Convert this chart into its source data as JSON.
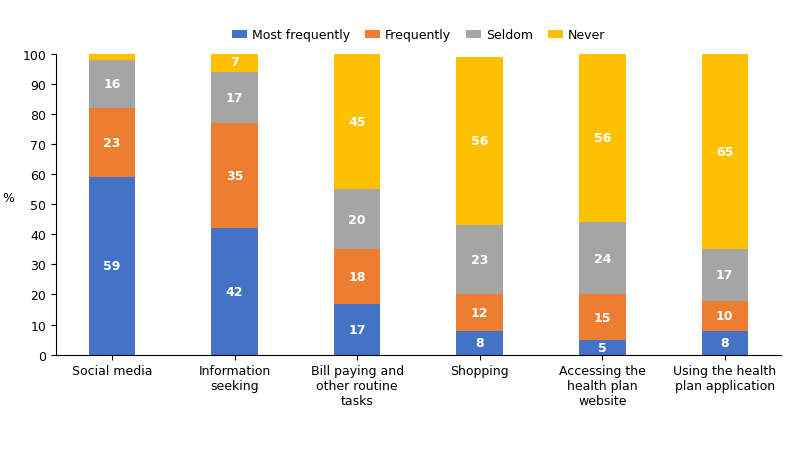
{
  "categories": [
    "Social media",
    "Information\nseeking",
    "Bill paying and\nother routine\ntasks",
    "Shopping",
    "Accessing the\nhealth plan\nwebsite",
    "Using the health\nplan application"
  ],
  "most_frequently": [
    59,
    42,
    17,
    8,
    5,
    8
  ],
  "frequently": [
    23,
    35,
    18,
    12,
    15,
    10
  ],
  "seldom": [
    16,
    17,
    20,
    23,
    24,
    17
  ],
  "never": [
    3,
    7,
    45,
    56,
    56,
    65
  ],
  "colors": {
    "most_frequently": "#4472C4",
    "frequently": "#ED7D31",
    "seldom": "#A5A5A5",
    "never": "#FFC000"
  },
  "ylabel": "%",
  "ylim": [
    0,
    100
  ],
  "yticks": [
    0,
    10,
    20,
    30,
    40,
    50,
    60,
    70,
    80,
    90,
    100
  ],
  "legend_labels": [
    "Most frequently",
    "Frequently",
    "Seldom",
    "Never"
  ],
  "bar_width": 0.38,
  "label_fontsize": 9,
  "axis_fontsize": 9,
  "tick_fontsize": 9
}
